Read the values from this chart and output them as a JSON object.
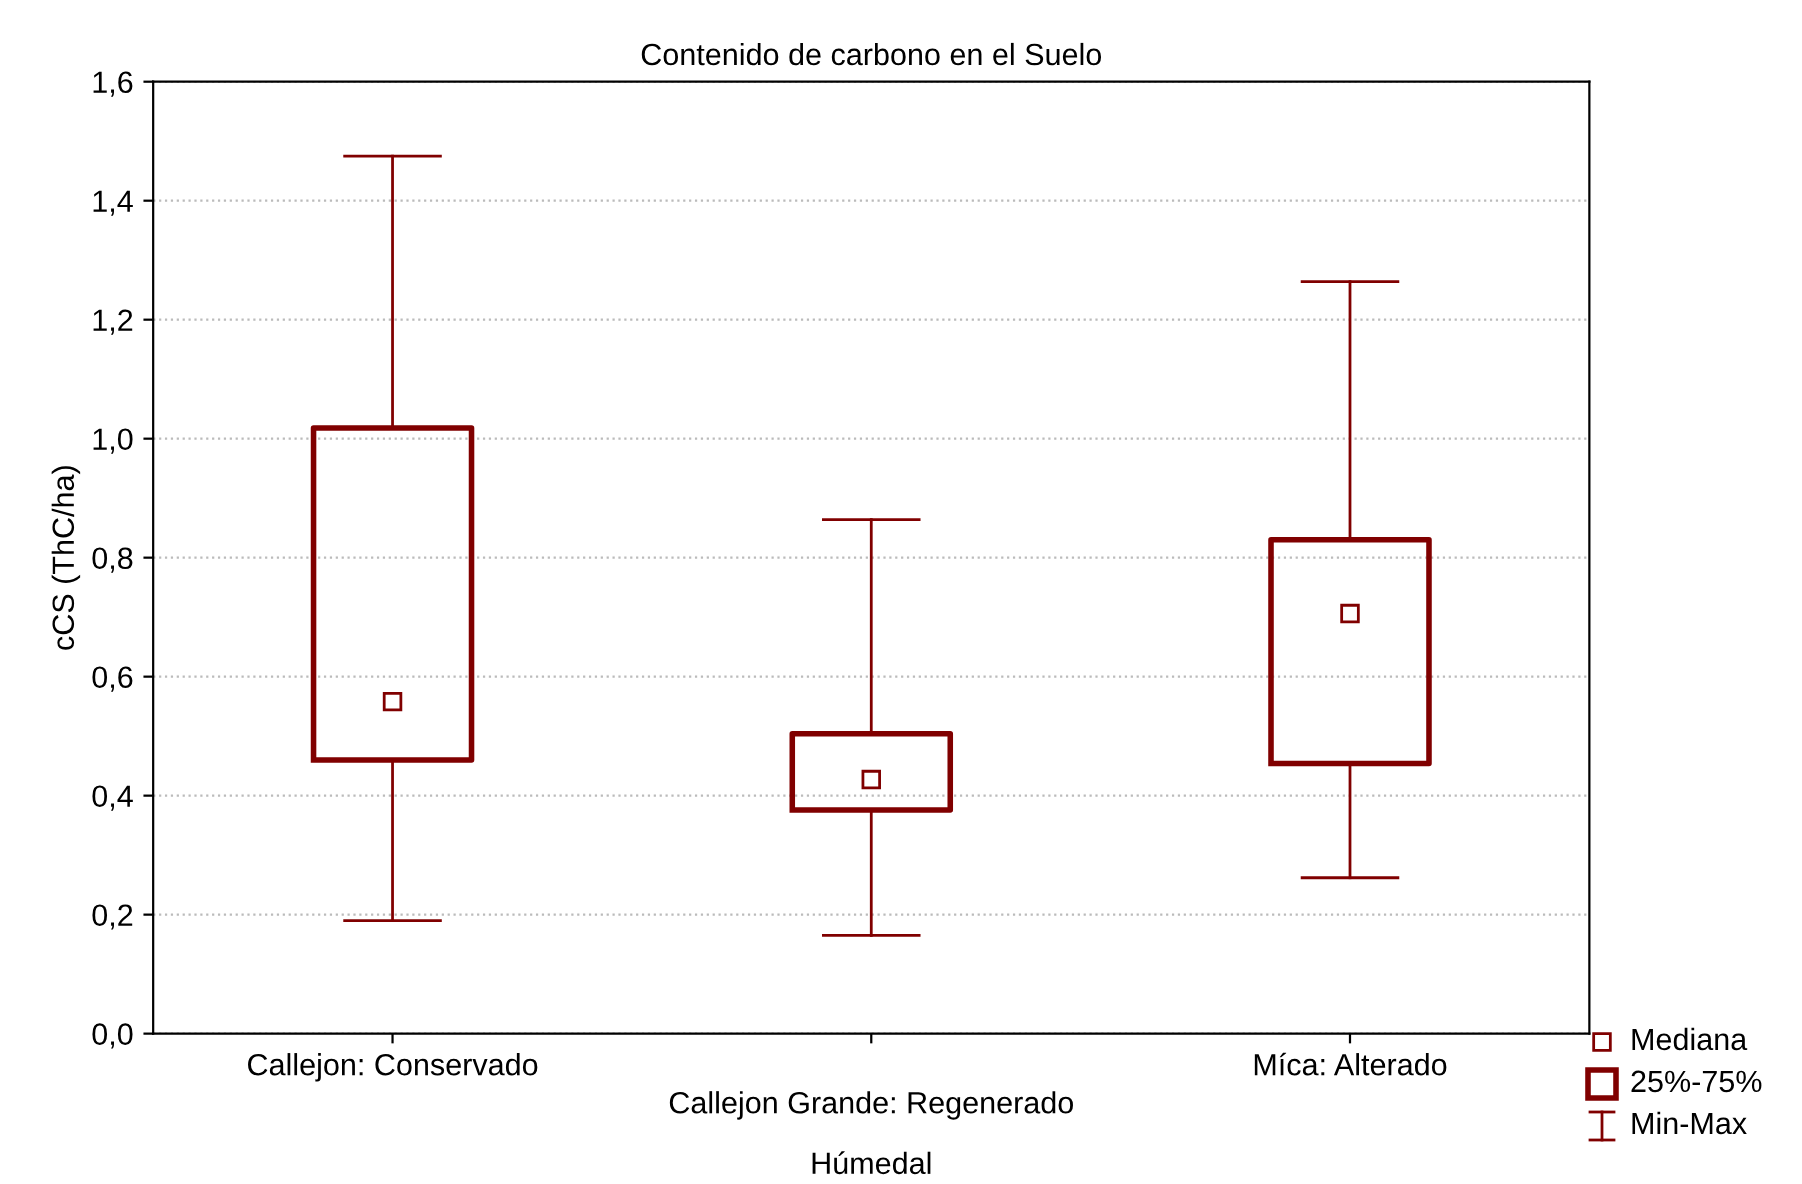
{
  "chart_data": {
    "type": "box",
    "title": "Contenido de carbono en el Suelo",
    "xlabel": "Húmedal",
    "ylabel": "cCS (ThC/ha)",
    "categories": [
      "Callejon: Conservado",
      "Callejon Grande: Regenerado",
      "Míca: Alterado"
    ],
    "color": "#800000",
    "boxes": [
      {
        "low": 0.19,
        "q1": 0.46,
        "median": 0.558,
        "q3": 1.018,
        "high": 1.475
      },
      {
        "low": 0.165,
        "q1": 0.376,
        "median": 0.427,
        "q3": 0.504,
        "high": 0.864
      },
      {
        "low": 0.262,
        "q1": 0.454,
        "median": 0.706,
        "q3": 0.83,
        "high": 1.264
      }
    ],
    "ylim": [
      0,
      1.6
    ],
    "yticks": [
      {
        "value": 0,
        "label": "0,0"
      },
      {
        "value": 0.2,
        "label": "0,2"
      },
      {
        "value": 0.4,
        "label": "0,4"
      },
      {
        "value": 0.6,
        "label": "0,6"
      },
      {
        "value": 0.8,
        "label": "0,8"
      },
      {
        "value": 1.0,
        "label": "1,0"
      },
      {
        "value": 1.2,
        "label": "1,2"
      },
      {
        "value": 1.4,
        "label": "1,4"
      },
      {
        "value": 1.6,
        "label": "1,6"
      }
    ],
    "grid": "y",
    "marker": "square",
    "annotations": [
      "Mediana",
      "25%-75%",
      "Min-Max"
    ]
  }
}
